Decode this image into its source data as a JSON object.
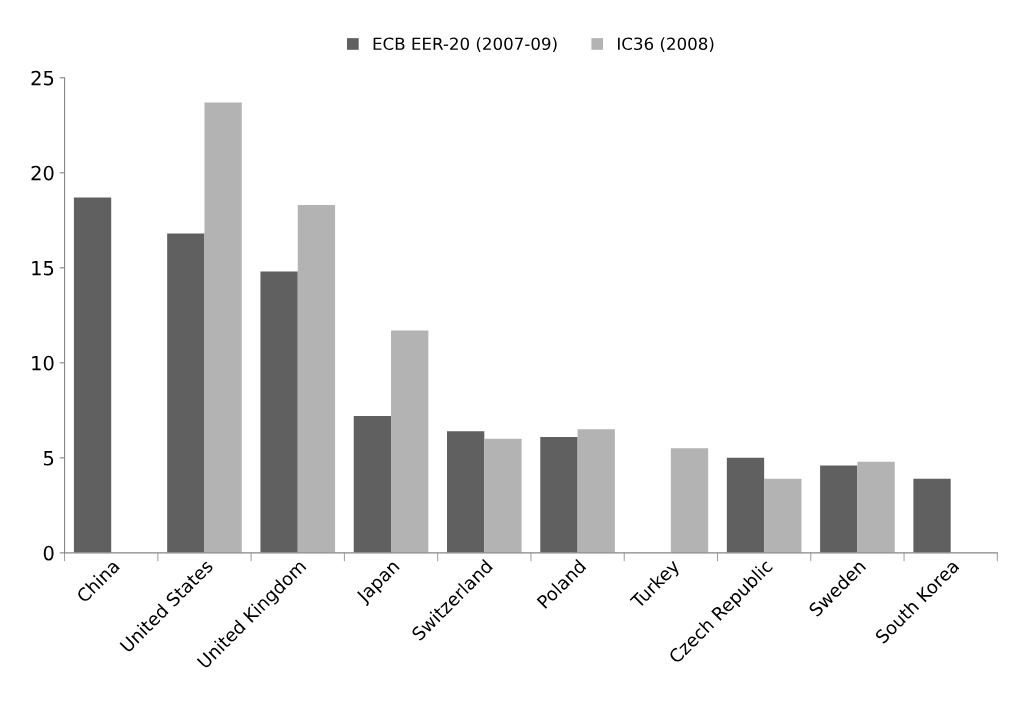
{
  "chart_data": {
    "type": "bar",
    "categories": [
      "China",
      "United States",
      "United Kingdom",
      "Japan",
      "Switzerland",
      "Poland",
      "Turkey",
      "Czech Republic",
      "Sweden",
      "South Korea"
    ],
    "series": [
      {
        "name": "ECB EER-20 (2007-09)",
        "color": "#606060",
        "values": [
          18.7,
          16.8,
          14.8,
          7.2,
          6.4,
          6.1,
          null,
          5.0,
          4.6,
          3.9
        ]
      },
      {
        "name": "IC36 (2008)",
        "color": "#b3b3b3",
        "values": [
          null,
          23.7,
          18.3,
          11.7,
          6.0,
          6.5,
          5.5,
          3.9,
          4.8,
          null
        ]
      }
    ],
    "ylim": [
      0,
      25
    ],
    "yticks": [
      0,
      5,
      10,
      15,
      20,
      25
    ],
    "grid": false,
    "legend": "top"
  }
}
